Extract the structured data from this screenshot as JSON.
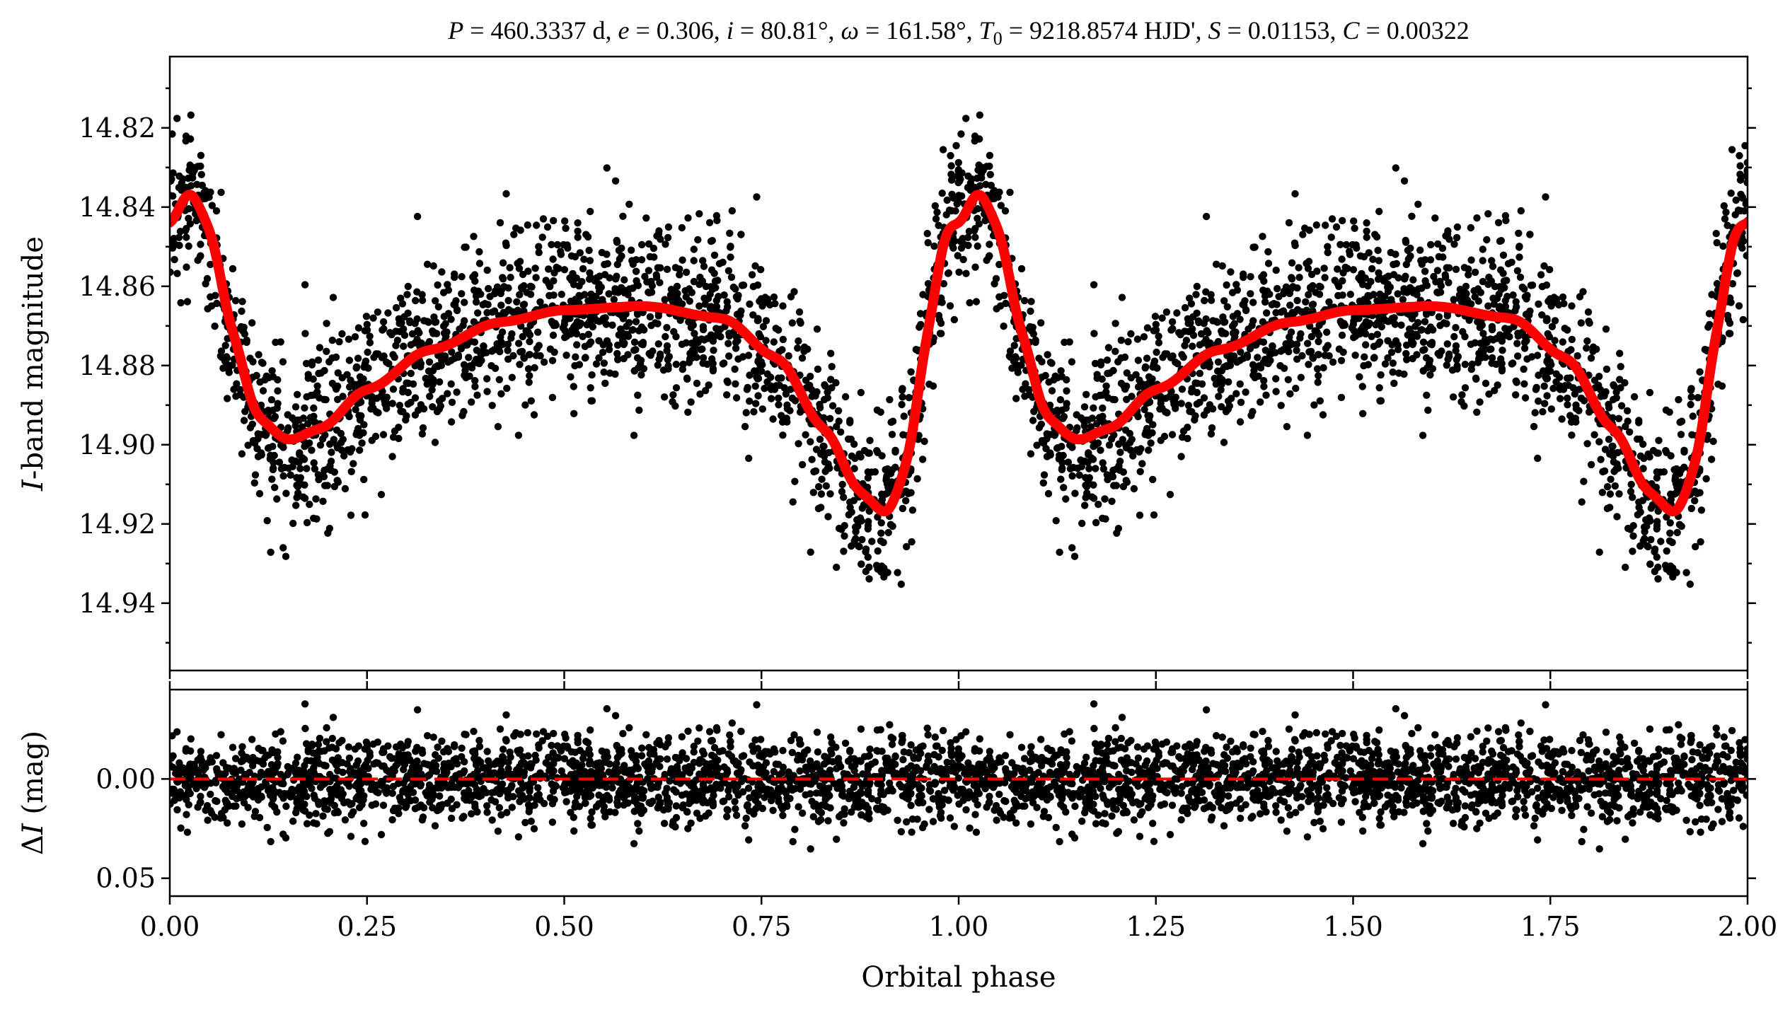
{
  "chart_data": [
    {
      "type": "scatter",
      "panel": "top",
      "title": "P = 460.3337 d, e = 0.306, i = 80.81°, ω = 161.58°, T₀ = 9218.8574 HJD', S = 0.01153, C = 0.00322",
      "title_parts": {
        "p": "P",
        "p_val": " = 460.3337 d, ",
        "e": "e",
        "e_val": " = 0.306, ",
        "i": "i",
        "i_val": " = 80.81°, ",
        "w": "ω",
        "w_val": " = 161.58°, ",
        "t": "T",
        "t_sub": "0",
        "t_val": " = 9218.8574 HJD', ",
        "s": "S",
        "s_val": " = 0.01153, ",
        "c": "C",
        "c_val": " = 0.00322"
      },
      "ylabel_italic": "I",
      "ylabel_rest": "-band magnitude",
      "ylim": [
        14.957,
        14.802
      ],
      "y_inverted": true,
      "yticks": [
        "14.82",
        "14.84",
        "14.86",
        "14.88",
        "14.90",
        "14.92",
        "14.94"
      ],
      "xlim": [
        0.0,
        2.0
      ],
      "series": [
        {
          "style": "black points"
        },
        {
          "style": "red thick line"
        }
      ],
      "model": {
        "phase": [
          0.0,
          0.025,
          0.05,
          0.08,
          0.11,
          0.15,
          0.19,
          0.25,
          0.33,
          0.42,
          0.5,
          0.6,
          0.7,
          0.77,
          0.83,
          0.875,
          0.91,
          0.935,
          0.96,
          0.985,
          1.0,
          1.025
        ],
        "mag": [
          14.845,
          14.835,
          14.845,
          14.872,
          14.893,
          14.899,
          14.896,
          14.886,
          14.876,
          14.869,
          14.866,
          14.865,
          14.868,
          14.878,
          14.896,
          14.912,
          14.918,
          14.905,
          14.872,
          14.844,
          14.845,
          14.835
        ]
      }
    },
    {
      "type": "scatter",
      "panel": "bottom",
      "ylabel_prefix": "Δ",
      "ylabel_italic": "I",
      "ylabel_rest": " (mag)",
      "ylim": [
        0.059,
        -0.045
      ],
      "y_inverted": true,
      "yticks": [
        "0.00",
        "0.05"
      ],
      "xlabel": "Orbital phase",
      "xlim": [
        0.0,
        2.0
      ],
      "xticks": [
        "0.00",
        "0.25",
        "0.50",
        "0.75",
        "1.00",
        "1.25",
        "1.50",
        "1.75",
        "2.00"
      ],
      "reference_line": {
        "y": 0.0,
        "style": "red dashed"
      }
    }
  ],
  "colors": {
    "points": "#000000",
    "model": "#ff0000",
    "zero_line": "#ff0000"
  }
}
